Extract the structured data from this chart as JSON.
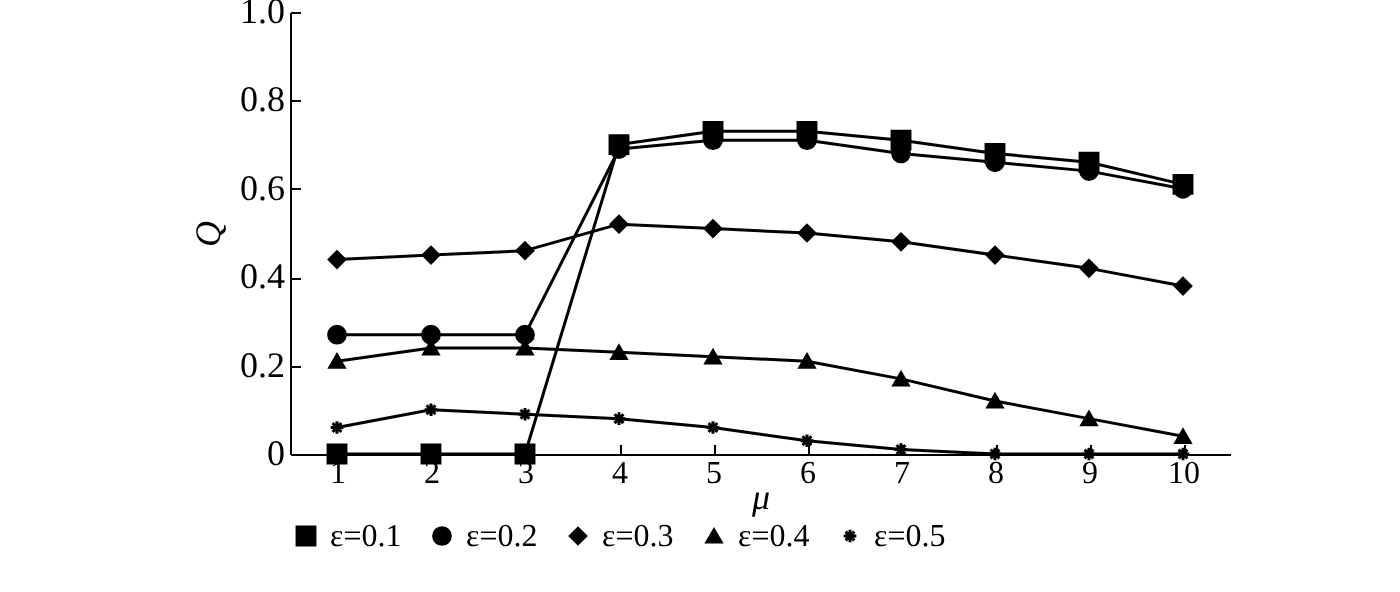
{
  "chart_data": {
    "type": "line",
    "xlabel": "μ",
    "ylabel": "Q",
    "x": [
      1,
      2,
      3,
      4,
      5,
      6,
      7,
      8,
      9,
      10
    ],
    "series": [
      {
        "name": "ε=0.1",
        "color": "#000000",
        "marker": "square",
        "values": [
          0,
          0,
          0,
          0.7,
          0.73,
          0.73,
          0.71,
          0.68,
          0.66,
          0.61
        ]
      },
      {
        "name": "ε=0.2",
        "color": "#000000",
        "marker": "circle",
        "values": [
          0.27,
          0.27,
          0.27,
          0.69,
          0.71,
          0.71,
          0.68,
          0.66,
          0.64,
          0.6
        ]
      },
      {
        "name": "ε=0.3",
        "color": "#000000",
        "marker": "diamond",
        "values": [
          0.44,
          0.45,
          0.46,
          0.52,
          0.51,
          0.5,
          0.48,
          0.45,
          0.42,
          0.38
        ]
      },
      {
        "name": "ε=0.4",
        "color": "#000000",
        "marker": "triangle",
        "values": [
          0.21,
          0.24,
          0.24,
          0.23,
          0.22,
          0.21,
          0.17,
          0.12,
          0.08,
          0.04
        ]
      },
      {
        "name": "ε=0.5",
        "color": "#000000",
        "marker": "cross",
        "values": [
          0.06,
          0.1,
          0.09,
          0.08,
          0.06,
          0.03,
          0.01,
          0,
          0,
          0
        ]
      }
    ],
    "xlim": [
      0.5,
      10.5
    ],
    "xticks": [
      1,
      2,
      3,
      4,
      5,
      6,
      7,
      8,
      9,
      10
    ],
    "ylim": [
      0,
      1
    ],
    "yticks": [
      0,
      0.2,
      0.4,
      0.6,
      0.8,
      {
        "value": 1,
        "label": "1.0"
      }
    ],
    "grid": false,
    "legend": "bottom",
    "line_style": "solid"
  }
}
